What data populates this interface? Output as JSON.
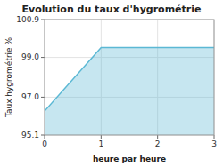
{
  "chart_data": {
    "type": "area",
    "title": "Evolution du taux d'hygrométrie",
    "xlabel": "heure par heure",
    "ylabel": "Taux hygrométrie %",
    "x": [
      0,
      1,
      3
    ],
    "values": [
      96.3,
      99.5,
      99.5
    ],
    "color": "#5bb8d4",
    "xlim": [
      0,
      3
    ],
    "ylim": [
      95.1,
      100.9
    ],
    "xticks": [
      0,
      1,
      2,
      3
    ],
    "yticks": [
      95.1,
      {
        "value": 97.0,
        "label": "97.0"
      },
      {
        "value": 99.0,
        "label": "99.0"
      },
      100.9
    ],
    "grid": true
  }
}
